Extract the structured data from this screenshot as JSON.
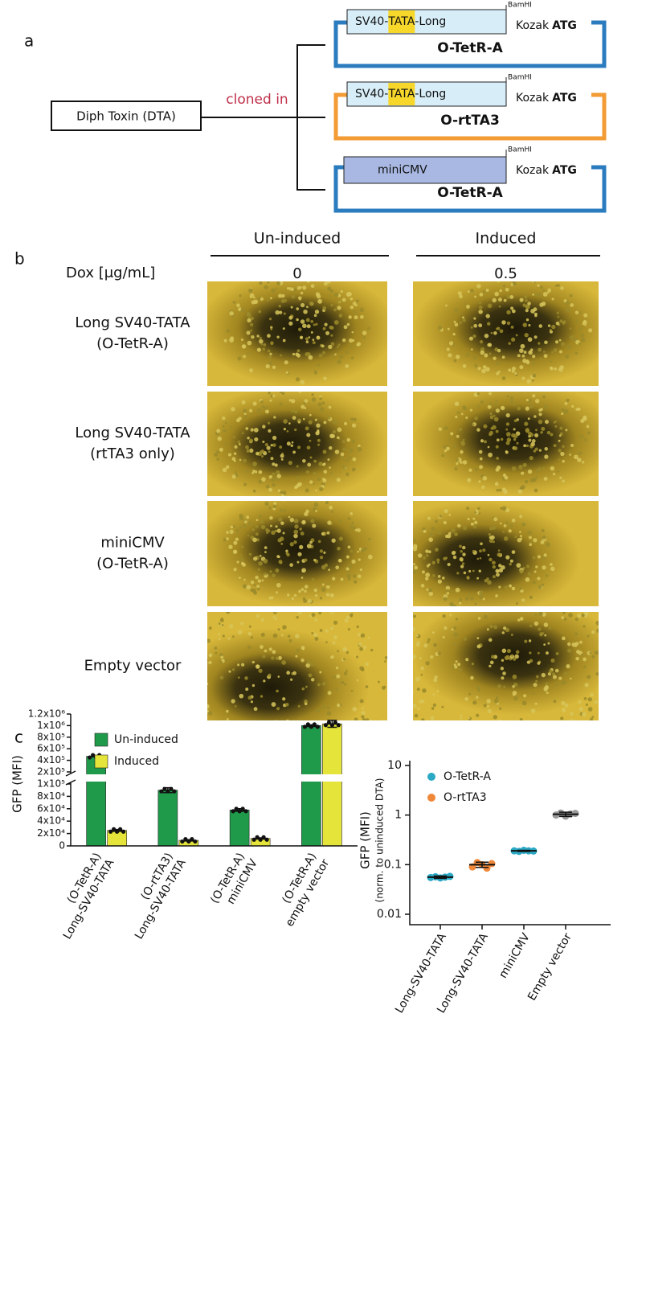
{
  "panel_a": {
    "label": "a",
    "insert": "Diph Toxin (DTA)",
    "connector": "cloned in",
    "constructs": [
      {
        "promoter": [
          "SV40-",
          "TATA",
          "-Long"
        ],
        "site": "BamHI",
        "kozak": "Kozak",
        "start": "ATG",
        "name": "O-TetR-A",
        "color": "#2b7bbf",
        "promoter_color": "#d7eef9"
      },
      {
        "promoter": [
          "SV40-",
          "TATA",
          "-Long"
        ],
        "site": "BamHI",
        "kozak": "Kozak",
        "start": "ATG",
        "name": "O-rtTA3",
        "color": "#f39b35",
        "promoter_color": "#d7eef9"
      },
      {
        "promoter": [
          "miniCMV"
        ],
        "site": "BamHI",
        "kozak": "Kozak",
        "start": "ATG",
        "name": "O-TetR-A",
        "color": "#2b7bbf",
        "promoter_color": "#a8b8e2"
      }
    ]
  },
  "panel_b": {
    "label": "b",
    "conditions": [
      "Un-induced",
      "Induced"
    ],
    "dose_label": "Dox [μg/mL]",
    "doses": [
      0,
      0.5
    ],
    "rows": [
      [
        "Long SV40-TATA",
        "(O-TetR-A)"
      ],
      [
        "Long SV40-TATA",
        "(rtTA3 only)"
      ],
      [
        "miniCMV",
        "(O-TetR-A)"
      ],
      [
        "Empty vector"
      ]
    ]
  },
  "panel_c_label": "c",
  "chart_data": [
    {
      "type": "bar",
      "ylabel": "GFP (MFI)",
      "categories": [
        [
          "(O-TetR-A)",
          "Long-SV40-TATA"
        ],
        [
          "(O-rtTA3)",
          "Long-SV40-TATA"
        ],
        [
          "(O-TetR-A)",
          "miniCMV"
        ],
        [
          "(O-TetR-A)",
          "empty vector"
        ]
      ],
      "series": [
        {
          "name": "Un-induced",
          "color": "#1f9a4a",
          "values": [
            470000,
            90000,
            58000,
            1000000
          ],
          "errors": [
            8000,
            4000,
            2000,
            15000
          ]
        },
        {
          "name": "Induced",
          "color": "#e4e43a",
          "values": [
            25000,
            9000,
            12000,
            1030000
          ],
          "errors": [
            1500,
            1000,
            1000,
            60000
          ]
        }
      ],
      "ylim": [
        0,
        1200000
      ],
      "ybreak": [
        100000,
        200000
      ],
      "yticks": [
        0,
        {
          "value": 20000,
          "label": "2x10⁴"
        },
        {
          "value": 40000,
          "label": "4x10⁴"
        },
        {
          "value": 60000,
          "label": "6x10⁴"
        },
        {
          "value": 80000,
          "label": "8x10⁴"
        },
        {
          "value": 100000,
          "label": "1x10⁵"
        },
        {
          "value": 200000,
          "label": "2x10⁵"
        },
        {
          "value": 400000,
          "label": "4x10⁵"
        },
        {
          "value": 600000,
          "label": "6x10⁵"
        },
        {
          "value": 800000,
          "label": "8x10⁵"
        },
        {
          "value": 1000000,
          "label": "1x10⁶"
        },
        {
          "value": 1200000,
          "label": "1.2x10⁶"
        }
      ],
      "legend": "top-left"
    },
    {
      "type": "scatter",
      "ylabel": [
        "GFP (MFI)",
        "(norm. to uninduced DTA)"
      ],
      "categories": [
        "Long-SV40-TATA",
        "Long-SV40-TATA",
        "miniCMV",
        "Empty vector"
      ],
      "series": [
        {
          "name": "O-TetR-A",
          "color": "#2aa8c4",
          "values": [
            [
              0.055,
              0.057,
              0.054,
              0.056,
              0.058
            ],
            null,
            [
              0.19,
              0.185,
              0.195,
              0.19,
              0.188
            ],
            null
          ]
        },
        {
          "name": "O-rtTA3",
          "color": "#f0883a",
          "values": [
            null,
            [
              0.09,
              0.11,
              0.1,
              0.085,
              0.105
            ],
            null,
            null
          ]
        },
        {
          "color": "#999999",
          "values": [
            null,
            null,
            null,
            [
              1.0,
              1.1,
              0.95,
              1.05,
              1.08
            ]
          ]
        }
      ],
      "means": [
        0.056,
        0.1,
        0.19,
        1.04
      ],
      "errors": [
        0.003,
        0.012,
        0.005,
        0.1
      ],
      "log_y": true,
      "ylim": [
        0.01,
        10
      ],
      "yticks": [
        0.01,
        0.1,
        1,
        10
      ],
      "legend": "top-left"
    }
  ]
}
